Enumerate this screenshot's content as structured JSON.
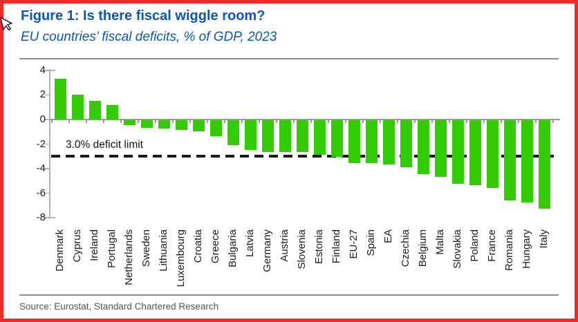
{
  "figure": {
    "title": "Figure 1: Is there fiscal wiggle room?",
    "subtitle": "EU countries’ fiscal deficits, % of GDP, 2023",
    "source": "Source: Eurostat, Standard Chartered Research"
  },
  "colors": {
    "title_blue": "#0e57ac",
    "bar_green": "#33cc00",
    "frame_red": "#ee2b2b",
    "axis_gray": "#b3b3b3",
    "zero_line_gray": "#999999",
    "dash_black": "#1a1a1a",
    "source_gray": "#545454"
  },
  "icons": {
    "cursor": "arrow-pointer-icon"
  },
  "chart_data": {
    "type": "bar",
    "title": "Figure 1: Is there fiscal wiggle room?",
    "subtitle": "EU countries’ fiscal deficits, % of GDP, 2023",
    "xlabel": "",
    "ylabel": "% of GDP",
    "ylim": [
      -8,
      4
    ],
    "yticks": [
      4,
      2,
      0,
      -2,
      -4,
      -6,
      -8
    ],
    "grid": false,
    "legend": false,
    "bar_color": "#33cc00",
    "categories": [
      "Denmark",
      "Cyprus",
      "Ireland",
      "Portugal",
      "Netherlands",
      "Sweden",
      "Lithuania",
      "Luxembourg",
      "Croatia",
      "Greece",
      "Bulgaria",
      "Latvia",
      "Germany",
      "Austria",
      "Slovenia",
      "Estonia",
      "Finland",
      "EU-27",
      "Spain",
      "EA",
      "Czechia",
      "Belgium",
      "Malta",
      "Slovakia",
      "Poland",
      "France",
      "Romania",
      "Hungary",
      "Italy"
    ],
    "values": [
      3.3,
      2.0,
      1.5,
      1.2,
      -0.4,
      -0.6,
      -0.7,
      -0.8,
      -0.9,
      -1.3,
      -2.0,
      -2.4,
      -2.6,
      -2.6,
      -2.6,
      -2.8,
      -3.0,
      -3.5,
      -3.5,
      -3.6,
      -3.8,
      -4.4,
      -4.6,
      -5.2,
      -5.3,
      -5.5,
      -6.5,
      -6.7,
      -7.2
    ],
    "reference_line": {
      "value": -3.0,
      "label": "3.0% deficit limit",
      "style": "dashed",
      "color": "#1a1a1a"
    }
  }
}
